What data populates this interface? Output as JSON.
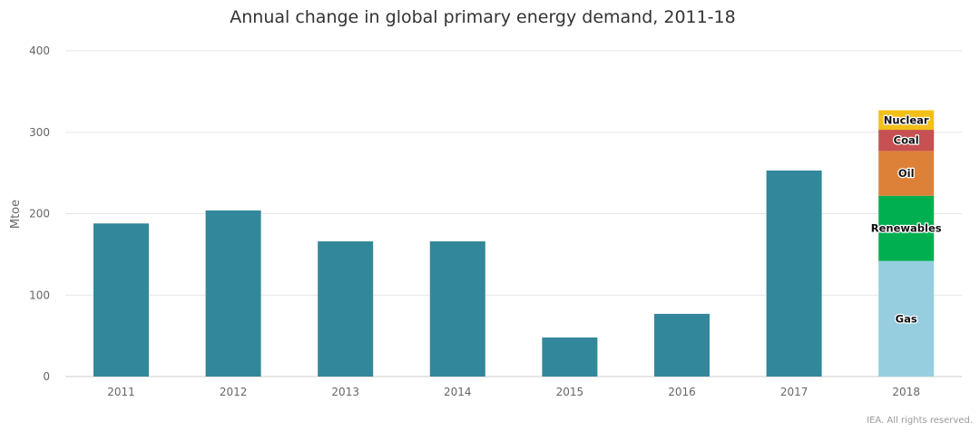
{
  "chart_data": {
    "type": "bar",
    "title": "Annual change in global primary energy demand, 2011-18",
    "xlabel": "",
    "ylabel": "Mtoe",
    "ylim": [
      0,
      400
    ],
    "yticks": [
      0,
      100,
      200,
      300,
      400
    ],
    "grid": true,
    "categories": [
      "2011",
      "2012",
      "2013",
      "2014",
      "2015",
      "2016",
      "2017",
      "2018"
    ],
    "values": [
      188,
      204,
      166,
      166,
      48,
      77,
      253,
      null
    ],
    "bar_color": "#33879B",
    "stacked_2018": [
      {
        "name": "Gas",
        "value": 142,
        "color": "#96CEE0"
      },
      {
        "name": "Renewables",
        "value": 80,
        "color": "#00B050"
      },
      {
        "name": "Oil",
        "value": 55,
        "color": "#DD8138"
      },
      {
        "name": "Coal",
        "value": 26,
        "color": "#C65052"
      },
      {
        "name": "Nuclear",
        "value": 24,
        "color": "#F2C019"
      }
    ]
  },
  "footer": {
    "credit": "IEA. All rights reserved."
  }
}
